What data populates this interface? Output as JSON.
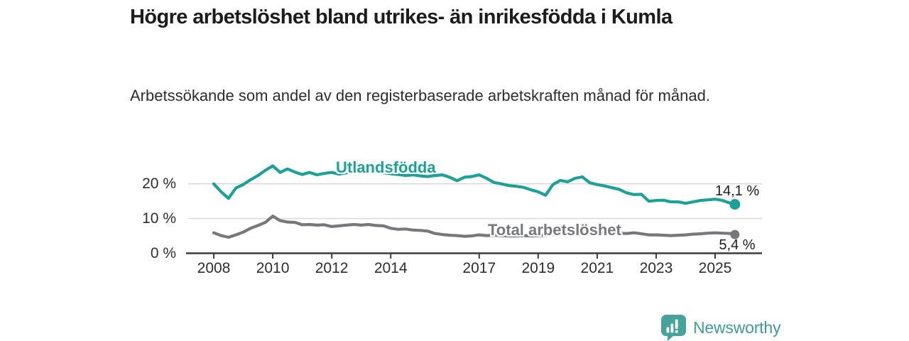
{
  "header": {
    "title": "Högre arbetslöshet bland utrikes- än inrikesfödda i Kumla",
    "subtitle": "Arbetssökande som andel av den registerbaserade arbetskraften månad för månad."
  },
  "footer": {
    "brand": "Newsworthy",
    "brand_color": "#3d9d97",
    "logo_icon": "bar-chart-speech-bubble-icon"
  },
  "chart_data": {
    "type": "line",
    "title": "Högre arbetslöshet bland utrikes- än inrikesfödda i Kumla",
    "subtitle": "Arbetssökande som andel av den registerbaserade arbetskraften månad för månad.",
    "xlabel": "",
    "ylabel": "",
    "xlim": [
      2007.85,
      2025.95
    ],
    "ylim": [
      0,
      27
    ],
    "grid": "horizontal",
    "legend_position": "inline-on-line",
    "x": [
      2008.0,
      2008.25,
      2008.5,
      2008.75,
      2009.0,
      2009.25,
      2009.5,
      2009.75,
      2010.0,
      2010.25,
      2010.5,
      2010.75,
      2011.0,
      2011.25,
      2011.5,
      2011.75,
      2012.0,
      2012.25,
      2012.5,
      2012.75,
      2013.0,
      2013.25,
      2013.5,
      2013.75,
      2014.0,
      2014.25,
      2014.5,
      2014.75,
      2015.0,
      2015.25,
      2015.5,
      2015.75,
      2016.0,
      2016.25,
      2016.5,
      2016.75,
      2017.0,
      2017.25,
      2017.5,
      2017.75,
      2018.0,
      2018.25,
      2018.5,
      2018.75,
      2019.0,
      2019.25,
      2019.5,
      2019.75,
      2020.0,
      2020.25,
      2020.5,
      2020.75,
      2021.0,
      2021.25,
      2021.5,
      2021.75,
      2022.0,
      2022.25,
      2022.5,
      2022.75,
      2023.0,
      2023.25,
      2023.5,
      2023.75,
      2024.0,
      2024.25,
      2024.5,
      2024.75,
      2025.0,
      2025.25,
      2025.5,
      2025.67
    ],
    "series": [
      {
        "name": "Utlandsfödda",
        "color": "#1aa29a",
        "end_label": "14,1 %",
        "end_value": 14.1,
        "values": [
          20.0,
          17.7,
          15.8,
          18.8,
          19.8,
          21.2,
          22.4,
          23.9,
          25.2,
          23.3,
          24.3,
          23.4,
          22.7,
          23.3,
          22.6,
          23.0,
          23.3,
          22.8,
          23.2,
          23.6,
          24.1,
          24.4,
          23.8,
          23.2,
          22.9,
          22.7,
          22.4,
          22.6,
          22.3,
          22.1,
          22.4,
          22.6,
          21.9,
          20.9,
          21.9,
          22.1,
          22.6,
          21.6,
          20.4,
          20.0,
          19.5,
          19.3,
          19.0,
          18.3,
          17.7,
          16.7,
          19.8,
          21.0,
          20.6,
          21.6,
          22.0,
          20.3,
          19.8,
          19.4,
          18.9,
          18.4,
          17.4,
          16.9,
          17.0,
          15.0,
          15.2,
          15.3,
          14.8,
          14.8,
          14.4,
          14.8,
          15.2,
          15.4,
          15.6,
          15.2,
          14.5,
          14.1
        ]
      },
      {
        "name": "Total arbetslöshet",
        "color": "#77787c",
        "end_label": "5,4 %",
        "end_value": 5.4,
        "values": [
          5.9,
          5.1,
          4.6,
          5.3,
          6.1,
          7.2,
          8.0,
          8.9,
          10.7,
          9.4,
          9.0,
          8.9,
          8.2,
          8.3,
          8.1,
          8.2,
          7.7,
          7.9,
          8.1,
          8.3,
          8.1,
          8.3,
          8.0,
          7.9,
          7.2,
          6.9,
          7.0,
          6.7,
          6.6,
          6.4,
          5.7,
          5.4,
          5.2,
          5.1,
          4.9,
          5.0,
          5.3,
          5.1,
          5.2,
          5.1,
          5.0,
          5.0,
          5.1,
          5.0,
          5.1,
          5.2,
          5.4,
          5.6,
          5.8,
          6.2,
          6.3,
          6.2,
          6.1,
          5.9,
          5.8,
          5.8,
          5.7,
          5.9,
          5.6,
          5.3,
          5.3,
          5.2,
          5.1,
          5.2,
          5.3,
          5.5,
          5.6,
          5.8,
          5.9,
          5.8,
          5.7,
          5.4
        ]
      }
    ],
    "xticks": [
      {
        "label": "2008",
        "year": 2008
      },
      {
        "label": "2010",
        "year": 2010
      },
      {
        "label": "2012",
        "year": 2012
      },
      {
        "label": "2014",
        "year": 2014
      },
      {
        "label": "2017",
        "year": 2017
      },
      {
        "label": "2019",
        "year": 2019
      },
      {
        "label": "2021",
        "year": 2021
      },
      {
        "label": "2023",
        "year": 2023
      },
      {
        "label": "2025",
        "year": 2025
      }
    ],
    "yticks": [
      {
        "label": "0 %",
        "value": 0
      },
      {
        "label": "10 %",
        "value": 10
      },
      {
        "label": "20 %",
        "value": 20
      }
    ],
    "axis_color": "#3c3c3c",
    "gridline_color": "#d9d9d9"
  }
}
